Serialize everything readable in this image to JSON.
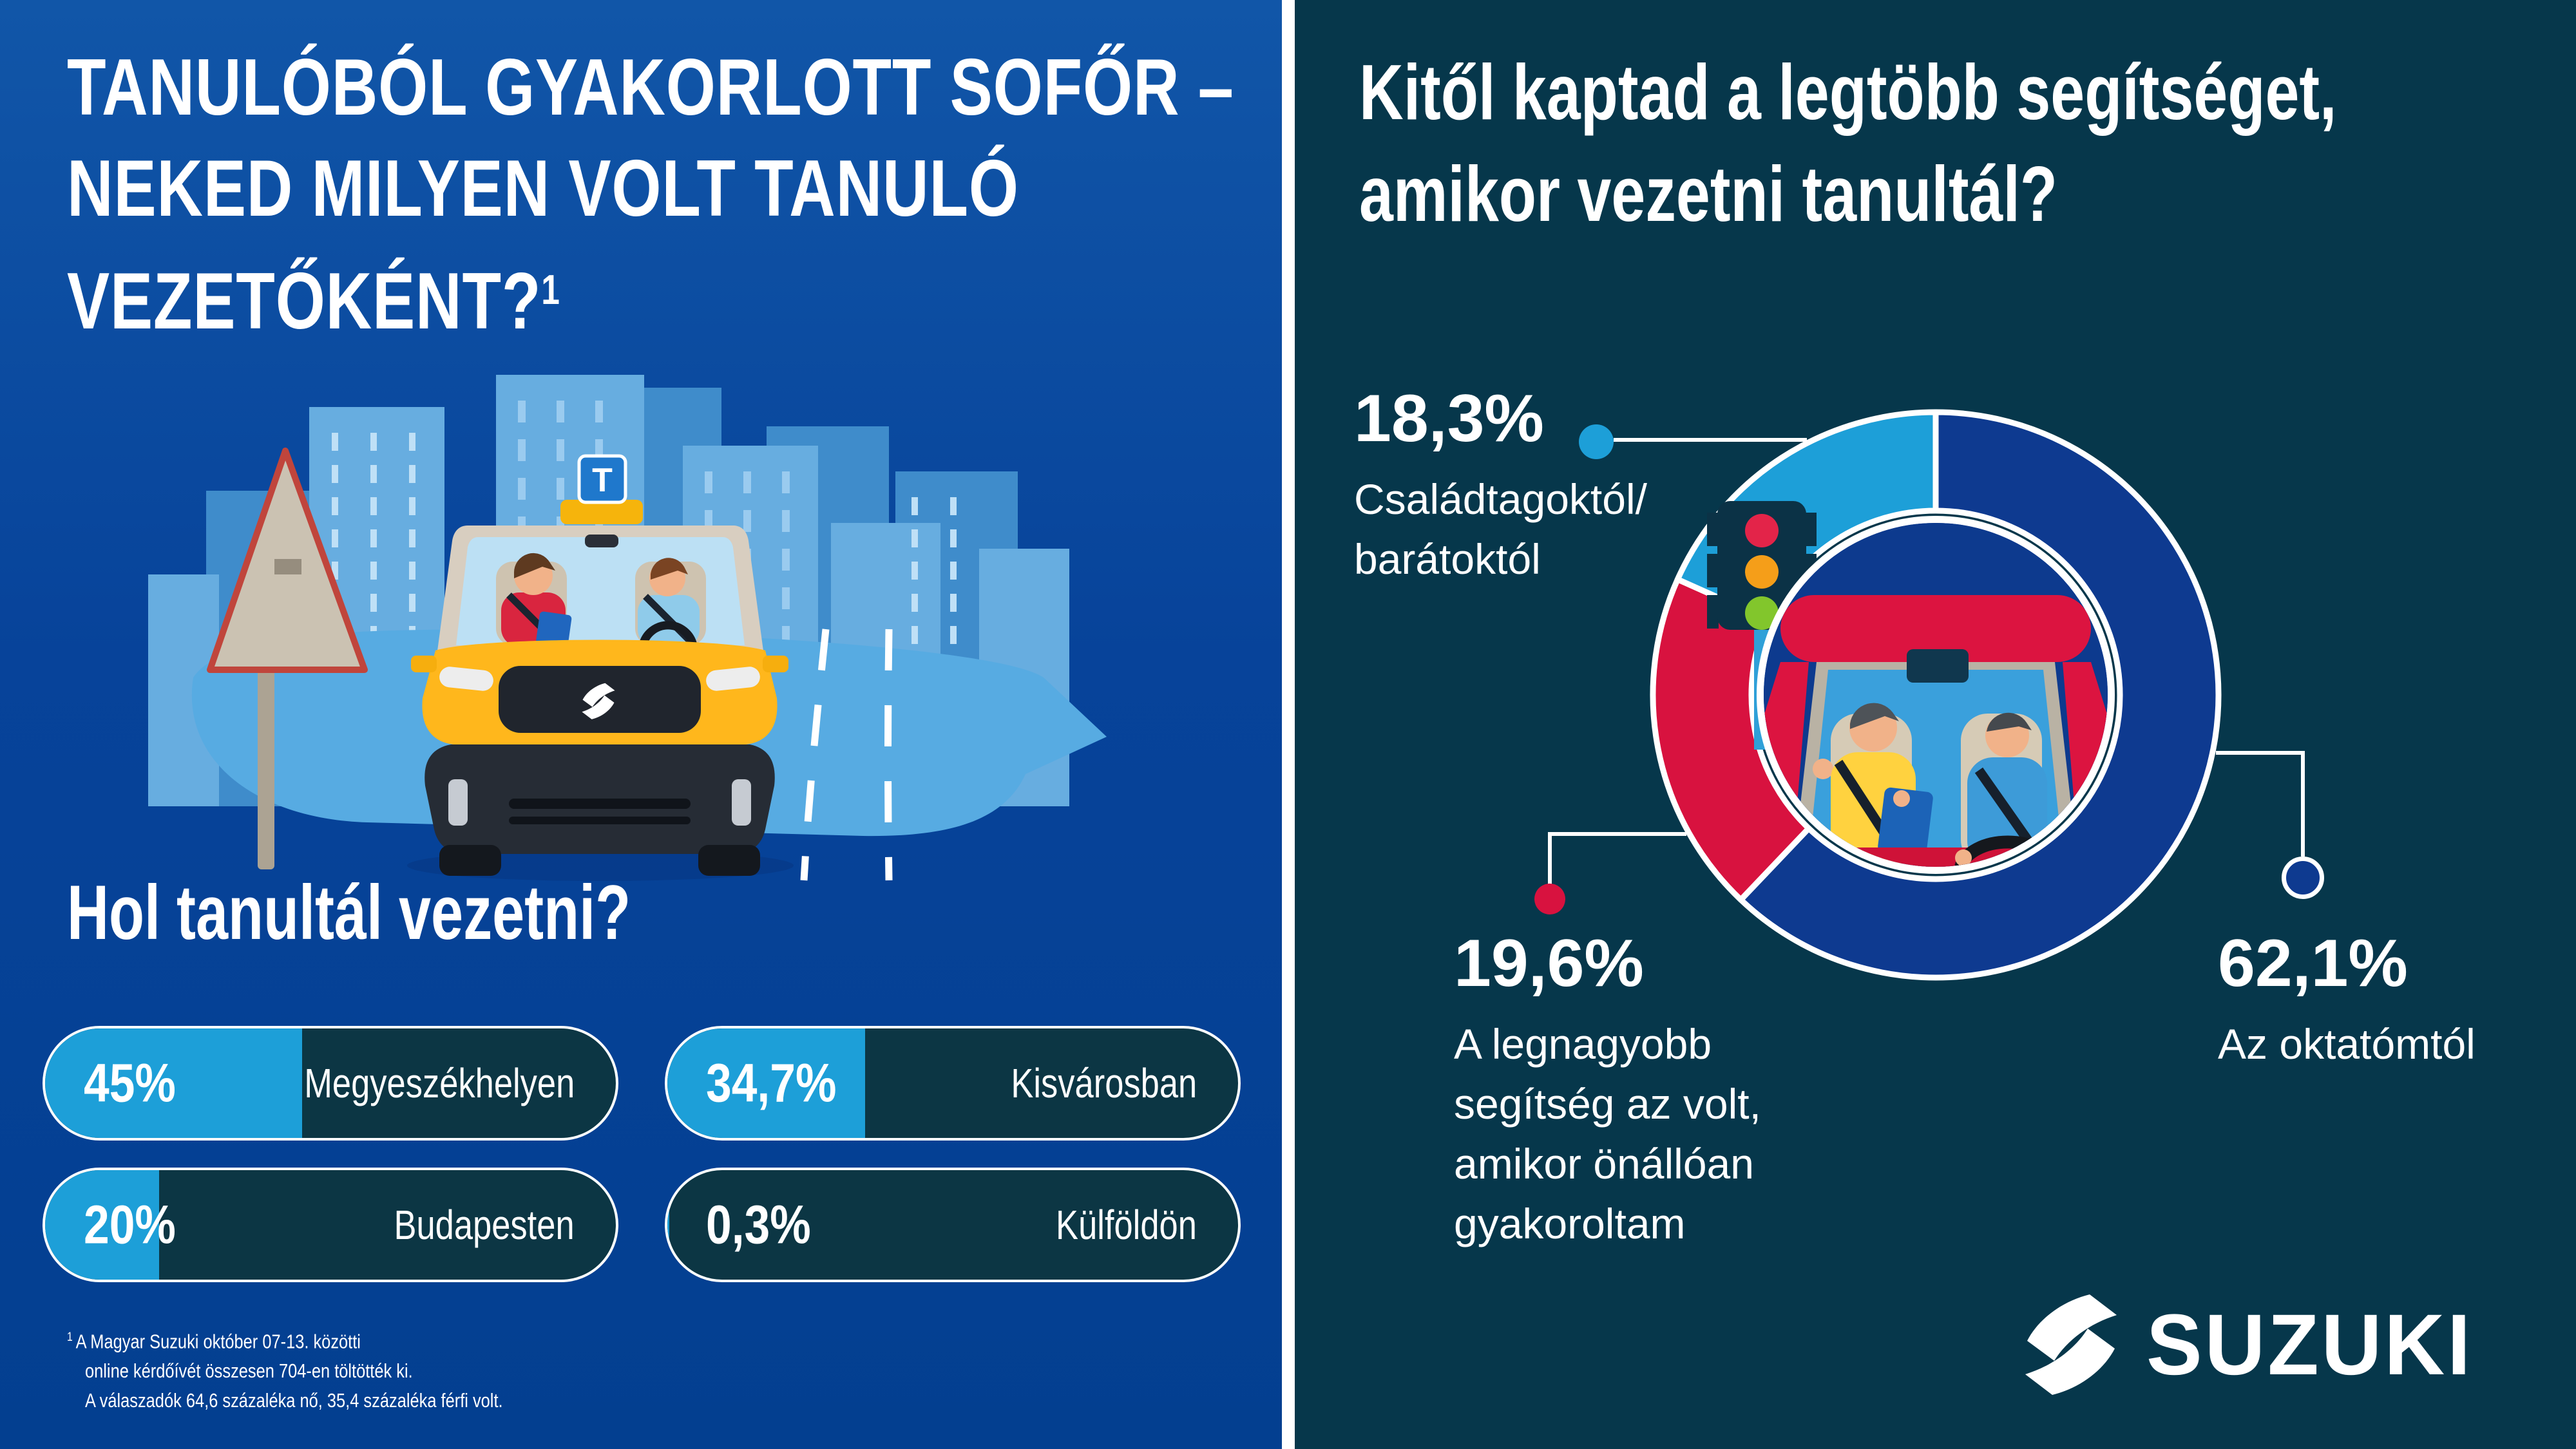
{
  "palette": {
    "left_bg_top": "#1156A8",
    "left_bg_bottom": "#033F90",
    "right_bg": "#06374B",
    "light_blue": "#1D9FD8",
    "dark_blue": "#0E3A90",
    "red": "#D8123F",
    "bar_track": "#0C3644",
    "car_yellow": "#FFB71C",
    "white": "#FFFFFF"
  },
  "left": {
    "title_lines": [
      "TANULÓBÓL GYAKORLOTT SOFŐR –",
      "NEKED MILYEN VOLT TANULÓ",
      "VEZETŐKÉNT?"
    ],
    "title_superscript": "1",
    "section_heading": "Hol tanultál vezetni?",
    "illustration": {
      "t_sign": "T"
    },
    "footnote": {
      "superscript": "1",
      "lines": [
        "A Magyar Suzuki október 07-13. közötti",
        "online kérdőívét összesen 704-en töltötték ki.",
        "A válaszadók 64,6 százaléka nő, 35,4 százaléka férfi volt."
      ]
    }
  },
  "right": {
    "title_lines": [
      "Kitől kaptad a legtöbb segítséget,",
      "amikor vezetni tanultál?"
    ],
    "callouts": [
      {
        "id": "family",
        "value_display": "18,3%",
        "label_lines": [
          "Családtagoktól/",
          "barátoktól"
        ],
        "color": "#1D9FD8"
      },
      {
        "id": "practice",
        "value_display": "19,6%",
        "label_lines": [
          "A legnagyobb",
          "segítség az volt,",
          "amikor önállóan",
          "gyakoroltam"
        ],
        "color": "#D8123F"
      },
      {
        "id": "instructor",
        "value_display": "62,1%",
        "label_lines": [
          "Az oktatómtól"
        ],
        "color": "#0E3A90"
      }
    ],
    "logo_text": "SUZUKI"
  },
  "chart_data": [
    {
      "type": "bar",
      "orientation": "horizontal",
      "title": "Hol tanultál vezetni?",
      "categories": [
        "Megyeszékhelyen",
        "Kisvárosban",
        "Budapesten",
        "Külföldön"
      ],
      "values": [
        45,
        34.7,
        20,
        0.3
      ],
      "value_labels": [
        "45%",
        "34,7%",
        "20%",
        "0,3%"
      ],
      "xlim": [
        0,
        100
      ],
      "bar_fill_color": "#1D9FD8",
      "bar_track_color": "#0C3644",
      "grid": false
    },
    {
      "type": "pie",
      "subtype": "donut",
      "title": "Kitől kaptad a legtöbb segítséget, amikor vezetni tanultál?",
      "start_angle_deg": 0,
      "direction": "clockwise",
      "inner_radius_ratio": 0.65,
      "legend": "callouts",
      "slices": [
        {
          "label": "Az oktatómtól",
          "value": 62.1,
          "display": "62,1%",
          "color": "#0E3A90"
        },
        {
          "label": "A legnagyobb segítség az volt, amikor önállóan gyakoroltam",
          "value": 19.6,
          "display": "19,6%",
          "color": "#D8123F"
        },
        {
          "label": "Családtagoktól/barátoktól",
          "value": 18.3,
          "display": "18,3%",
          "color": "#1D9FD8"
        }
      ]
    }
  ]
}
